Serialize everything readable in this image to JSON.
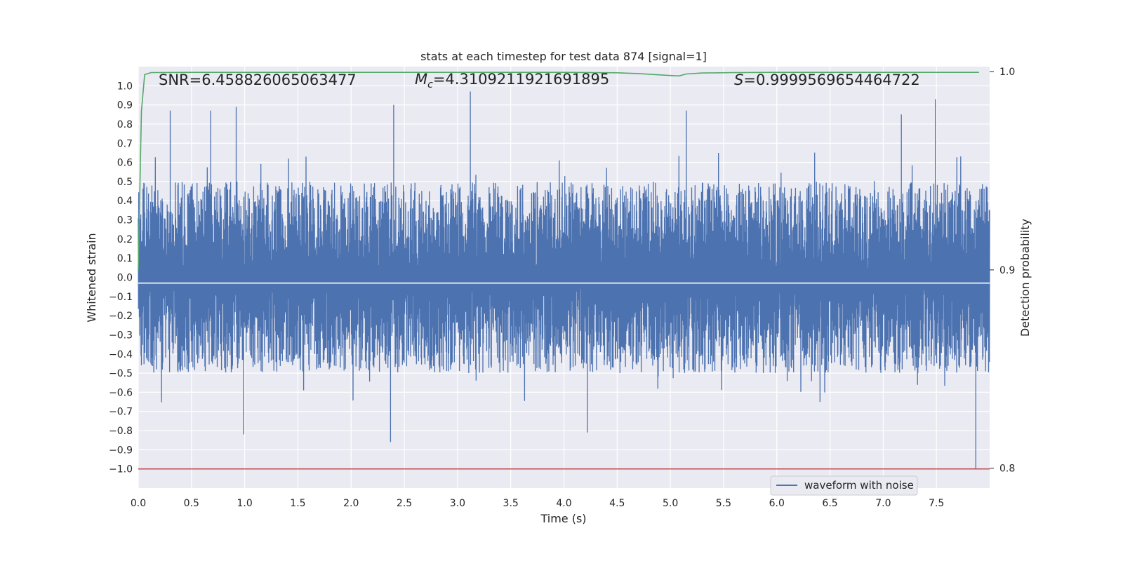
{
  "chart_data": {
    "type": "line",
    "title": "stats at each timestep for test data 874 [signal=1]",
    "xlabel": "Time (s)",
    "ylabel": "Whitened strain",
    "y2label": "Detection probability",
    "xlim": [
      0.0,
      8.0
    ],
    "ylim": [
      -1.1,
      1.1
    ],
    "y2lim": [
      0.79,
      1.0025
    ],
    "x_ticks": [
      "0.0",
      "0.5",
      "1.0",
      "1.5",
      "2.0",
      "2.5",
      "3.0",
      "3.5",
      "4.0",
      "4.5",
      "5.0",
      "5.5",
      "6.0",
      "6.5",
      "7.0",
      "7.5"
    ],
    "y_ticks": [
      "1.0",
      "0.9",
      "0.8",
      "0.7",
      "0.6",
      "0.5",
      "0.4",
      "0.3",
      "0.2",
      "0.1",
      "0.0",
      "−0.1",
      "−0.2",
      "−0.3",
      "−0.4",
      "−0.5",
      "−0.6",
      "−0.7",
      "−0.8",
      "−0.9",
      "−1.0"
    ],
    "y2_ticks": [
      "1.0",
      "0.9",
      "0.8"
    ],
    "grid": true,
    "legend_position": "lower-right",
    "annotations": {
      "snr": "SNR=6.458826065063477",
      "mc_symbol": "M",
      "mc_subscript": "c",
      "mc_value": "=4.3109211921691895",
      "s_symbol": "S",
      "s_value": "=0.9999569654464722"
    },
    "series": [
      {
        "name": "waveform with noise",
        "axis": "left",
        "color": "#4c72b0",
        "style": "noise",
        "sample_interval": 0.002,
        "x_range": [
          0.0,
          8.0
        ],
        "envelope": [
          -0.5,
          0.5
        ],
        "spikes": [
          {
            "x": 0.3,
            "y": 0.87
          },
          {
            "x": 0.68,
            "y": 0.87
          },
          {
            "x": 0.92,
            "y": 0.89
          },
          {
            "x": 2.4,
            "y": 0.9
          },
          {
            "x": 3.12,
            "y": 0.97
          },
          {
            "x": 5.15,
            "y": 0.87
          },
          {
            "x": 7.17,
            "y": 0.85
          },
          {
            "x": 7.49,
            "y": 0.93
          },
          {
            "x": 0.99,
            "y": -0.82
          },
          {
            "x": 2.37,
            "y": -0.86
          },
          {
            "x": 4.22,
            "y": -0.81
          },
          {
            "x": 7.87,
            "y": -1.0
          }
        ]
      },
      {
        "name": "",
        "axis": "right",
        "color": "#55a868",
        "x": [
          0.0,
          0.03,
          0.06,
          0.12,
          0.5,
          1.0,
          2.0,
          3.0,
          4.0,
          4.5,
          4.7,
          4.85,
          5.0,
          5.08,
          5.15,
          5.3,
          5.6,
          6.0,
          7.0,
          7.9
        ],
        "y": [
          0.9,
          0.98,
          0.9985,
          0.9995,
          0.9996,
          0.9996,
          0.9996,
          0.9996,
          0.9996,
          0.9994,
          0.999,
          0.9985,
          0.998,
          0.9978,
          0.9988,
          0.9993,
          0.9995,
          0.9996,
          0.9996,
          0.9996
        ]
      },
      {
        "name": "",
        "axis": "left",
        "color": "#ffffff",
        "x": [
          0.0,
          8.0
        ],
        "y": [
          -0.03,
          -0.03
        ]
      },
      {
        "name": "",
        "axis": "left",
        "color": "#c44e52",
        "x": [
          0.0,
          8.0
        ],
        "y": [
          -1.0,
          -1.0
        ]
      }
    ]
  }
}
